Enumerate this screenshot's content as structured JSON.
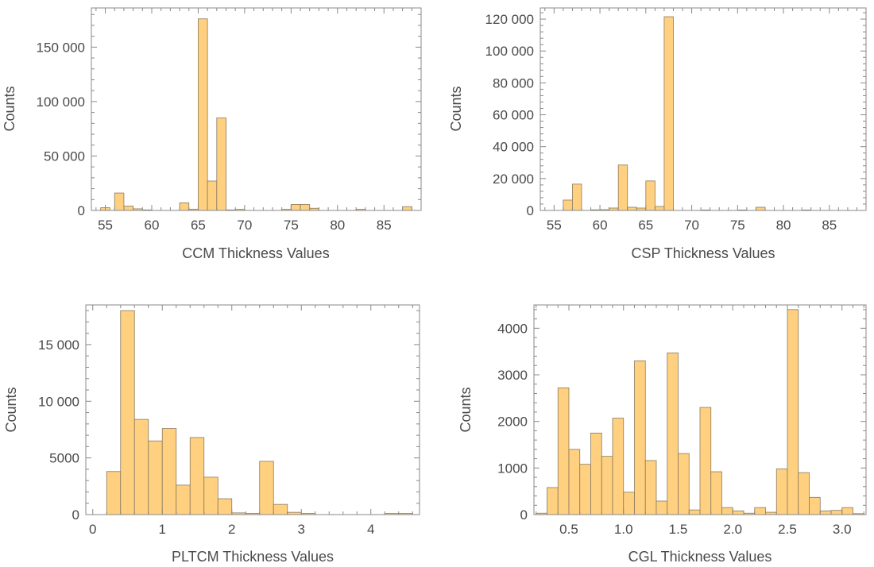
{
  "chart_data": [
    {
      "type": "bar",
      "xlabel": "CCM Thickness Values",
      "ylabel": "Counts",
      "xlim": [
        53.5,
        89
      ],
      "ylim": [
        0,
        186000
      ],
      "x_ticks": [
        55,
        60,
        65,
        70,
        75,
        80,
        85
      ],
      "x_tick_labels": [
        "55",
        "60",
        "65",
        "70",
        "75",
        "80",
        "85"
      ],
      "y_ticks": [
        0,
        50000,
        100000,
        150000
      ],
      "y_tick_labels": [
        "0",
        "50 000",
        "100 000",
        "150 000"
      ],
      "bins": [
        {
          "x0": 54.5,
          "x1": 55.5,
          "count": 2500
        },
        {
          "x0": 56,
          "x1": 57,
          "count": 16000
        },
        {
          "x0": 57,
          "x1": 58,
          "count": 4000
        },
        {
          "x0": 58,
          "x1": 59,
          "count": 1500
        },
        {
          "x0": 59,
          "x1": 60,
          "count": 500
        },
        {
          "x0": 63,
          "x1": 64,
          "count": 7000
        },
        {
          "x0": 64,
          "x1": 65,
          "count": 1200
        },
        {
          "x0": 65,
          "x1": 66,
          "count": 176000
        },
        {
          "x0": 66,
          "x1": 67,
          "count": 27000
        },
        {
          "x0": 67,
          "x1": 68,
          "count": 85000
        },
        {
          "x0": 68,
          "x1": 69,
          "count": 500
        },
        {
          "x0": 69,
          "x1": 70,
          "count": 1000
        },
        {
          "x0": 74,
          "x1": 75,
          "count": 1000
        },
        {
          "x0": 75,
          "x1": 76,
          "count": 5500
        },
        {
          "x0": 76,
          "x1": 77,
          "count": 5500
        },
        {
          "x0": 77,
          "x1": 78,
          "count": 2000
        },
        {
          "x0": 82,
          "x1": 83,
          "count": 1000
        },
        {
          "x0": 87,
          "x1": 88,
          "count": 3500
        }
      ]
    },
    {
      "type": "bar",
      "xlabel": "CSP Thickness Values",
      "ylabel": "Counts",
      "xlim": [
        53.5,
        89
      ],
      "ylim": [
        0,
        127000
      ],
      "x_ticks": [
        55,
        60,
        65,
        70,
        75,
        80,
        85
      ],
      "x_tick_labels": [
        "55",
        "60",
        "65",
        "70",
        "75",
        "80",
        "85"
      ],
      "y_ticks": [
        0,
        20000,
        40000,
        60000,
        80000,
        100000,
        120000
      ],
      "y_tick_labels": [
        "0",
        "20 000",
        "40 000",
        "60 000",
        "80 000",
        "100 000",
        "120 000"
      ],
      "bins": [
        {
          "x0": 56,
          "x1": 57,
          "count": 6500
        },
        {
          "x0": 57,
          "x1": 58,
          "count": 16500
        },
        {
          "x0": 59,
          "x1": 60,
          "count": 400
        },
        {
          "x0": 60,
          "x1": 61,
          "count": 500
        },
        {
          "x0": 61,
          "x1": 62,
          "count": 1500
        },
        {
          "x0": 62,
          "x1": 63,
          "count": 28500
        },
        {
          "x0": 63,
          "x1": 64,
          "count": 2000
        },
        {
          "x0": 64,
          "x1": 65,
          "count": 1500
        },
        {
          "x0": 65,
          "x1": 66,
          "count": 18500
        },
        {
          "x0": 66,
          "x1": 67,
          "count": 2500
        },
        {
          "x0": 67,
          "x1": 68,
          "count": 121500
        },
        {
          "x0": 71,
          "x1": 72,
          "count": 300
        },
        {
          "x0": 75,
          "x1": 76,
          "count": 300
        },
        {
          "x0": 77,
          "x1": 78,
          "count": 2000
        },
        {
          "x0": 82,
          "x1": 83,
          "count": 300
        }
      ]
    },
    {
      "type": "bar",
      "xlabel": "PLTCM Thickness Values",
      "ylabel": "Counts",
      "xlim": [
        -0.1,
        4.7
      ],
      "ylim": [
        0,
        18500
      ],
      "x_ticks": [
        0,
        1,
        2,
        3,
        4
      ],
      "x_tick_labels": [
        "0",
        "1",
        "2",
        "3",
        "4"
      ],
      "y_ticks": [
        0,
        5000,
        10000,
        15000
      ],
      "y_tick_labels": [
        "0",
        "5000",
        "10 000",
        "15 000"
      ],
      "bins": [
        {
          "x0": 0.2,
          "x1": 0.4,
          "count": 3800
        },
        {
          "x0": 0.4,
          "x1": 0.6,
          "count": 18000
        },
        {
          "x0": 0.6,
          "x1": 0.8,
          "count": 8400
        },
        {
          "x0": 0.8,
          "x1": 1.0,
          "count": 6500
        },
        {
          "x0": 1.0,
          "x1": 1.2,
          "count": 7600
        },
        {
          "x0": 1.2,
          "x1": 1.4,
          "count": 2600
        },
        {
          "x0": 1.4,
          "x1": 1.6,
          "count": 6800
        },
        {
          "x0": 1.6,
          "x1": 1.8,
          "count": 3300
        },
        {
          "x0": 1.8,
          "x1": 2.0,
          "count": 1400
        },
        {
          "x0": 2.0,
          "x1": 2.2,
          "count": 150
        },
        {
          "x0": 2.2,
          "x1": 2.4,
          "count": 100
        },
        {
          "x0": 2.4,
          "x1": 2.6,
          "count": 4700
        },
        {
          "x0": 2.6,
          "x1": 2.8,
          "count": 900
        },
        {
          "x0": 2.8,
          "x1": 3.0,
          "count": 200
        },
        {
          "x0": 3.0,
          "x1": 3.2,
          "count": 100
        },
        {
          "x0": 4.2,
          "x1": 4.6,
          "count": 100
        }
      ]
    },
    {
      "type": "bar",
      "xlabel": "CGL Thickness Values",
      "ylabel": "Counts",
      "xlim": [
        0.18,
        3.22
      ],
      "ylim": [
        0,
        4500
      ],
      "x_ticks": [
        0.5,
        1.0,
        1.5,
        2.0,
        2.5,
        3.0
      ],
      "x_tick_labels": [
        "0.5",
        "1.0",
        "1.5",
        "2.0",
        "2.5",
        "3.0"
      ],
      "y_ticks": [
        0,
        1000,
        2000,
        3000,
        4000
      ],
      "y_tick_labels": [
        "0",
        "1000",
        "2000",
        "3000",
        "4000"
      ],
      "bins": [
        {
          "x0": 0.2,
          "x1": 0.3,
          "count": 30
        },
        {
          "x0": 0.3,
          "x1": 0.4,
          "count": 580
        },
        {
          "x0": 0.4,
          "x1": 0.5,
          "count": 2720
        },
        {
          "x0": 0.5,
          "x1": 0.6,
          "count": 1400
        },
        {
          "x0": 0.6,
          "x1": 0.7,
          "count": 1080
        },
        {
          "x0": 0.7,
          "x1": 0.8,
          "count": 1750
        },
        {
          "x0": 0.8,
          "x1": 0.9,
          "count": 1250
        },
        {
          "x0": 0.9,
          "x1": 1.0,
          "count": 2070
        },
        {
          "x0": 1.0,
          "x1": 1.1,
          "count": 480
        },
        {
          "x0": 1.1,
          "x1": 1.2,
          "count": 3300
        },
        {
          "x0": 1.2,
          "x1": 1.3,
          "count": 1160
        },
        {
          "x0": 1.3,
          "x1": 1.4,
          "count": 290
        },
        {
          "x0": 1.4,
          "x1": 1.5,
          "count": 3470
        },
        {
          "x0": 1.5,
          "x1": 1.6,
          "count": 1310
        },
        {
          "x0": 1.6,
          "x1": 1.7,
          "count": 100
        },
        {
          "x0": 1.7,
          "x1": 1.8,
          "count": 2300
        },
        {
          "x0": 1.8,
          "x1": 1.9,
          "count": 920
        },
        {
          "x0": 1.9,
          "x1": 2.0,
          "count": 150
        },
        {
          "x0": 2.0,
          "x1": 2.1,
          "count": 80
        },
        {
          "x0": 2.1,
          "x1": 2.2,
          "count": 30
        },
        {
          "x0": 2.2,
          "x1": 2.3,
          "count": 150
        },
        {
          "x0": 2.3,
          "x1": 2.4,
          "count": 50
        },
        {
          "x0": 2.4,
          "x1": 2.5,
          "count": 980
        },
        {
          "x0": 2.5,
          "x1": 2.6,
          "count": 4400
        },
        {
          "x0": 2.6,
          "x1": 2.7,
          "count": 900
        },
        {
          "x0": 2.7,
          "x1": 2.8,
          "count": 370
        },
        {
          "x0": 2.8,
          "x1": 2.9,
          "count": 80
        },
        {
          "x0": 2.9,
          "x1": 3.0,
          "count": 90
        },
        {
          "x0": 3.0,
          "x1": 3.1,
          "count": 150
        },
        {
          "x0": 3.1,
          "x1": 3.2,
          "count": 20
        }
      ]
    }
  ],
  "colors": {
    "bar_fill": "#ffd07f",
    "bar_stroke": "#8a7a5e",
    "frame": "#888888",
    "text": "#4a4a4a"
  }
}
